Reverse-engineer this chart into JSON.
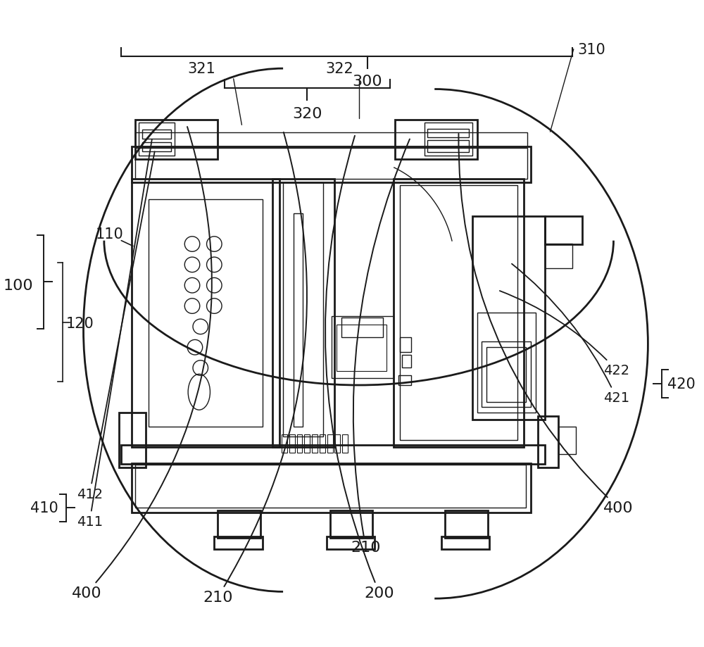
{
  "bg_color": "#ffffff",
  "line_color": "#1a1a1a",
  "figsize": [
    10.0,
    9.2
  ],
  "dpi": 100,
  "font_size": 16
}
